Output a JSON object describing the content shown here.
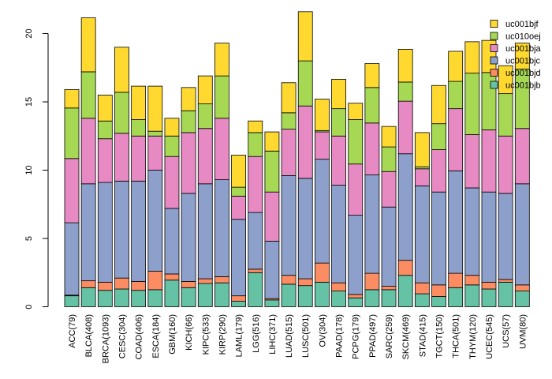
{
  "chart_data": {
    "type": "bar",
    "stacked": true,
    "title": "",
    "xlabel": "",
    "ylabel": "",
    "ylim": [
      0,
      22
    ],
    "yticks": [
      0,
      5,
      10,
      15,
      20
    ],
    "grid": false,
    "legend_position": "top-right",
    "categories": [
      "ACC(79)",
      "BLCA(408)",
      "BRCA(1093)",
      "CESC(304)",
      "COAD(406)",
      "ESCA(184)",
      "GBM(160)",
      "KICH(66)",
      "KIPC(533)",
      "KIRP(290)",
      "LAML(179)",
      "LGG(516)",
      "LIHC(371)",
      "LUAD(515)",
      "LUSC(501)",
      "OV(304)",
      "PAAD(178)",
      "PCPG(179)",
      "PPAD(497)",
      "SARC(259)",
      "SKCM(469)",
      "STAD(415)",
      "TGCT(150)",
      "THCA(501)",
      "THYM(120)",
      "UCEC(545)",
      "UCS(57)",
      "UVM(80)"
    ],
    "series": [
      {
        "name": "uc001bjb",
        "color": "#66C2A5",
        "values": [
          0.8,
          1.4,
          1.2,
          1.3,
          1.2,
          1.25,
          1.95,
          1.4,
          1.7,
          1.75,
          0.4,
          2.5,
          0.5,
          1.65,
          1.55,
          1.8,
          1.15,
          0.65,
          1.25,
          1.25,
          2.3,
          0.95,
          0.75,
          1.4,
          1.6,
          1.3,
          1.8,
          1.15
        ]
      },
      {
        "name": "uc001bjd",
        "color": "#FC8D62",
        "values": [
          0.05,
          0.5,
          0.6,
          0.8,
          0.65,
          1.35,
          0.45,
          0.45,
          0.35,
          0.45,
          0.4,
          0.25,
          0.1,
          0.65,
          0.5,
          1.4,
          0.6,
          0.25,
          1.2,
          0.25,
          1.1,
          0.8,
          0.85,
          1.05,
          0.7,
          0.5,
          0.2,
          0.45
        ]
      },
      {
        "name": "uc001bjc",
        "color": "#8DA0CB",
        "values": [
          5.3,
          7.1,
          7.3,
          7.1,
          7.35,
          7.4,
          4.8,
          6.45,
          6.95,
          7.1,
          5.6,
          4.15,
          4.2,
          7.3,
          7.35,
          7.6,
          7.15,
          5.8,
          7.2,
          5.8,
          7.8,
          7.1,
          6.8,
          7.5,
          6.4,
          6.6,
          6.3,
          7.4
        ]
      },
      {
        "name": "uc001bja",
        "color": "#E78AC3",
        "values": [
          4.7,
          4.8,
          3.2,
          3.5,
          3.3,
          2.5,
          3.8,
          4.45,
          4.05,
          4.5,
          1.7,
          4.1,
          3.6,
          3.4,
          5.3,
          2.0,
          3.6,
          3.75,
          3.8,
          2.6,
          3.85,
          1.25,
          3.1,
          4.55,
          3.9,
          4.55,
          4.2,
          4.05
        ]
      },
      {
        "name": "uc010oej",
        "color": "#A6D854",
        "values": [
          3.7,
          3.4,
          1.3,
          3.0,
          1.2,
          0.35,
          1.5,
          1.6,
          1.8,
          3.1,
          0.65,
          1.75,
          3.0,
          1.2,
          3.3,
          0.1,
          2.0,
          3.25,
          2.6,
          1.8,
          1.4,
          0.15,
          1.9,
          2.0,
          4.5,
          4.2,
          3.1,
          4.35
        ]
      },
      {
        "name": "uc001bjf",
        "color": "#FFD92F",
        "values": [
          1.35,
          3.95,
          1.9,
          3.3,
          2.45,
          3.3,
          1.3,
          1.7,
          2.05,
          2.4,
          2.35,
          0.85,
          1.4,
          2.2,
          3.6,
          2.3,
          2.15,
          1.2,
          1.75,
          1.5,
          2.4,
          2.5,
          2.8,
          2.2,
          2.3,
          2.35,
          2.05,
          1.9
        ]
      }
    ]
  }
}
